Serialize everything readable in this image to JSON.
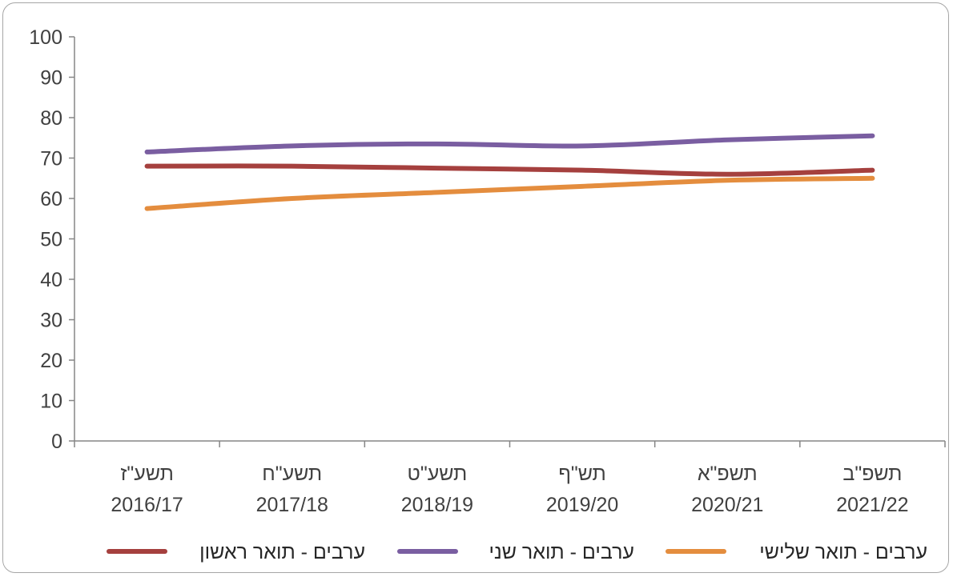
{
  "chart_data": {
    "type": "line",
    "title": "",
    "xlabel": "",
    "ylabel": "",
    "ylim": [
      0,
      100
    ],
    "yticks": [
      0,
      10,
      20,
      30,
      40,
      50,
      60,
      70,
      80,
      90,
      100
    ],
    "grid": false,
    "legend_position": "bottom",
    "categories": [
      {
        "hebrew": "תשע\"ז",
        "year": "2016/17"
      },
      {
        "hebrew": "תשע\"ח",
        "year": "2017/18"
      },
      {
        "hebrew": "תשע\"ט",
        "year": "2018/19"
      },
      {
        "hebrew": "תש\"ף",
        "year": "2019/20"
      },
      {
        "hebrew": "תשפ\"א",
        "year": "2020/21"
      },
      {
        "hebrew": "תשפ\"ב",
        "year": "2021/22"
      }
    ],
    "series": [
      {
        "name": "ערבים - תואר ראשון",
        "color": "#a5403e",
        "values": [
          68,
          68,
          67.5,
          67,
          66,
          67
        ]
      },
      {
        "name": "ערבים - תואר שני",
        "color": "#7a5ea1",
        "values": [
          71.5,
          73,
          73.5,
          73,
          74.5,
          75.5
        ]
      },
      {
        "name": "ערבים - תואר שלישי",
        "color": "#e48d3e",
        "values": [
          57.5,
          60,
          61.5,
          63,
          64.5,
          65
        ]
      }
    ]
  }
}
